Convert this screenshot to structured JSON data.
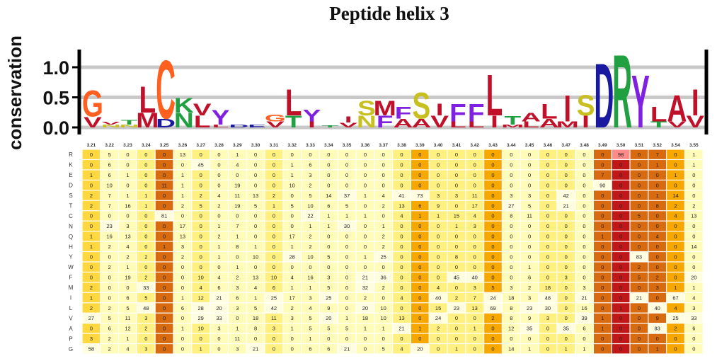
{
  "title": "Peptide helix 3",
  "ylabel": "conservation",
  "yticks": [
    "1.0",
    "0.5",
    "0.0"
  ],
  "positions": [
    "3.21",
    "3.22",
    "3.23",
    "3.24",
    "3.25",
    "3.26",
    "3.27",
    "3.28",
    "3.29",
    "3.30",
    "3.31",
    "3.32",
    "3.33",
    "3.34",
    "3.35",
    "3.36",
    "3.37",
    "3.38",
    "3.39",
    "3.40",
    "3.41",
    "3.42",
    "3.43",
    "3.44",
    "3.45",
    "3.46",
    "3.47",
    "3.48",
    "3.49",
    "3.50",
    "3.51",
    "3.52",
    "3.54",
    "3.55"
  ],
  "residues": [
    "R",
    "K",
    "E",
    "D",
    "S",
    "T",
    "C",
    "N",
    "Q",
    "H",
    "Y",
    "W",
    "F",
    "M",
    "I",
    "L",
    "V",
    "A",
    "P",
    "G"
  ],
  "colors": {
    "acidic": "#1a1aa0",
    "basic": "#2020d0",
    "hydrophobic": "#c0102a",
    "polar": "#c8c020",
    "aromatic": "#8020e0",
    "special": "#ff6020",
    "amide": "#20a040"
  },
  "logo": [
    {
      "top": "G",
      "top_h": 0.45,
      "top_c": "#ff6020",
      "bot": "V",
      "bot_h": 0.18,
      "bot_c": "#c0102a"
    },
    {
      "top": "V",
      "top_h": 0.05,
      "top_c": "#c0102a",
      "bot": "N",
      "bot_h": 0.05,
      "bot_c": "#c8c020"
    },
    {
      "top": "T",
      "top_h": 0.08,
      "top_c": "#20a040",
      "bot": "N",
      "bot_h": 0.05,
      "bot_c": "#c8c020"
    },
    {
      "top": "L",
      "top_h": 0.45,
      "top_c": "#c0102a",
      "bot": "M",
      "bot_h": 0.25,
      "bot_c": "#c0102a"
    },
    {
      "top": "C",
      "top_h": 1.0,
      "top_c": "#ff6020",
      "bot": "D",
      "bot_h": 0.15,
      "bot_c": "#1a1aa0"
    },
    {
      "top": "K",
      "top_h": 0.25,
      "top_c": "#20a040",
      "bot": "N",
      "bot_h": 0.25,
      "bot_c": "#20a040"
    },
    {
      "top": "V",
      "top_h": 0.2,
      "top_c": "#c0102a",
      "bot": "L",
      "bot_h": 0.2,
      "bot_c": "#c0102a"
    },
    {
      "top": "Y",
      "top_h": 0.25,
      "top_c": "#8020e0",
      "bot": "L",
      "bot_h": 0.05,
      "bot_c": "#c0102a"
    },
    {
      "top": "D",
      "top_h": 0.05,
      "top_c": "#1a1aa0",
      "bot": "",
      "bot_h": 0,
      "bot_c": "#1a1aa0"
    },
    {
      "top": "E",
      "top_h": 0.05,
      "top_c": "#1a1aa0",
      "bot": "",
      "bot_h": 0,
      "bot_c": "#1a1aa0"
    },
    {
      "top": "G",
      "top_h": 0.12,
      "top_c": "#ff6020",
      "bot": "V",
      "bot_h": 0.1,
      "bot_c": "#c0102a"
    },
    {
      "top": "L",
      "top_h": 0.45,
      "top_c": "#c0102a",
      "bot": "T",
      "bot_h": 0.2,
      "bot_c": "#20a040"
    },
    {
      "top": "Y",
      "top_h": 0.2,
      "top_c": "#8020e0",
      "bot": "I",
      "bot_h": 0.1,
      "bot_c": "#c0102a"
    },
    {
      "top": "T",
      "top_h": 0.04,
      "top_c": "#20a040",
      "bot": "",
      "bot_h": 0,
      "bot_c": "#20a040"
    },
    {
      "top": "I",
      "top_h": 0.1,
      "top_c": "#c0102a",
      "bot": "V",
      "bot_h": 0.08,
      "bot_c": "#c0102a"
    },
    {
      "top": "S",
      "top_h": 0.25,
      "top_c": "#c8c020",
      "bot": "N",
      "bot_h": 0.2,
      "bot_c": "#c8c020"
    },
    {
      "top": "M",
      "top_h": 0.25,
      "top_c": "#c0102a",
      "bot": "F",
      "bot_h": 0.2,
      "bot_c": "#8020e0"
    },
    {
      "top": "F",
      "top_h": 0.2,
      "top_c": "#8020e0",
      "bot": "A",
      "bot_h": 0.15,
      "bot_c": "#c0102a"
    },
    {
      "top": "S",
      "top_h": 0.45,
      "top_c": "#c8c020",
      "bot": "A",
      "bot_h": 0.15,
      "bot_c": "#c0102a"
    },
    {
      "top": "I",
      "top_h": 0.2,
      "top_c": "#c0102a",
      "bot": "V",
      "bot_h": 0.2,
      "bot_c": "#c0102a"
    },
    {
      "top": "F",
      "top_h": 0.3,
      "top_c": "#8020e0",
      "bot": "L",
      "bot_h": 0.1,
      "bot_c": "#c0102a"
    },
    {
      "top": "F",
      "top_h": 0.3,
      "top_c": "#8020e0",
      "bot": "L",
      "bot_h": 0.1,
      "bot_c": "#c0102a"
    },
    {
      "top": "L",
      "top_h": 0.7,
      "top_c": "#c0102a",
      "bot": "I",
      "bot_h": 0.2,
      "bot_c": "#c0102a"
    },
    {
      "top": "T",
      "top_h": 0.15,
      "top_c": "#20a040",
      "bot": "M",
      "bot_h": 0.05,
      "bot_c": "#c0102a"
    },
    {
      "top": "A",
      "top_h": 0.15,
      "top_c": "#c0102a",
      "bot": "L",
      "bot_h": 0.1,
      "bot_c": "#c0102a"
    },
    {
      "top": "L",
      "top_h": 0.25,
      "top_c": "#c0102a",
      "bot": "A",
      "bot_h": 0.15,
      "bot_c": "#c0102a"
    },
    {
      "top": "I",
      "top_h": 0.45,
      "top_c": "#c0102a",
      "bot": "M",
      "bot_h": 0.1,
      "bot_c": "#c0102a"
    },
    {
      "top": "S",
      "top_h": 0.35,
      "top_c": "#c8c020",
      "bot": "I",
      "bot_h": 0.2,
      "bot_c": "#c0102a"
    },
    {
      "top": "D",
      "top_h": 1.1,
      "top_c": "#1a1aa0",
      "bot": "",
      "bot_h": 0,
      "bot_c": "#1a1aa0"
    },
    {
      "top": "R",
      "top_h": 1.25,
      "top_c": "#20a040",
      "bot": "",
      "bot_h": 0,
      "bot_c": "#20a040"
    },
    {
      "top": "Y",
      "top_h": 0.9,
      "top_c": "#8020e0",
      "bot": "",
      "bot_h": 0,
      "bot_c": "#8020e0"
    },
    {
      "top": "L",
      "top_h": 0.25,
      "top_c": "#c0102a",
      "bot": "T",
      "bot_h": 0.1,
      "bot_c": "#20a040"
    },
    {
      "top": "A",
      "top_h": 0.45,
      "top_c": "#c0102a",
      "bot": "V",
      "bot_h": 0.1,
      "bot_c": "#c0102a"
    },
    {
      "top": "I",
      "top_h": 0.45,
      "top_c": "#c0102a",
      "bot": "V",
      "bot_h": 0.2,
      "bot_c": "#c0102a"
    }
  ],
  "matrix": [
    [
      "0",
      "5",
      "0",
      "0",
      "0",
      "13",
      "0",
      "0",
      "1",
      "0",
      "0",
      "0",
      "0",
      "0",
      "0",
      "0",
      "0",
      "0",
      "0",
      "0",
      "0",
      "0",
      "0",
      "0",
      "0",
      "0",
      "0",
      "0",
      "0",
      "98",
      "0",
      "7",
      "0",
      "1"
    ],
    [
      "0",
      "6",
      "0",
      "0",
      "0",
      "0",
      "45",
      "0",
      "4",
      "0",
      "0",
      "1",
      "6",
      "0",
      "0",
      "0",
      "0",
      "0",
      "0",
      "0",
      "0",
      "0",
      "0",
      "0",
      "0",
      "0",
      "0",
      "0",
      "0",
      "0",
      "0",
      "1",
      "0",
      "1"
    ],
    [
      "1",
      "6",
      "1",
      "0",
      "0",
      "1",
      "0",
      "0",
      "0",
      "0",
      "0",
      "1",
      "3",
      "0",
      "0",
      "0",
      "0",
      "0",
      "0",
      "0",
      "0",
      "0",
      "0",
      "0",
      "0",
      "0",
      "0",
      "0",
      "7",
      "0",
      "0",
      "0",
      "1",
      "0"
    ],
    [
      "0",
      "10",
      "0",
      "0",
      "11",
      "1",
      "0",
      "0",
      "19",
      "0",
      "0",
      "10",
      "2",
      "0",
      "0",
      "0",
      "0",
      "0",
      "0",
      "0",
      "0",
      "0",
      "0",
      "0",
      "0",
      "0",
      "0",
      "0",
      "90",
      "0",
      "0",
      "0",
      "0",
      "0"
    ],
    [
      "2",
      "7",
      "1",
      "1",
      "0",
      "1",
      "2",
      "4",
      "11",
      "13",
      "2",
      "0",
      "5",
      "14",
      "37",
      "1",
      "4",
      "41",
      "73",
      "3",
      "3",
      "11",
      "0",
      "3",
      "3",
      "0",
      "42",
      "0",
      "0",
      "0",
      "0",
      "1",
      "14",
      "0"
    ],
    [
      "2",
      "7",
      "16",
      "1",
      "0",
      "2",
      "5",
      "2",
      "19",
      "5",
      "1",
      "5",
      "10",
      "6",
      "5",
      "0",
      "2",
      "13",
      "6",
      "9",
      "0",
      "17",
      "0",
      "27",
      "5",
      "0",
      "21",
      "0",
      "0",
      "0",
      "0",
      "8",
      "2",
      "2"
    ],
    [
      "0",
      "0",
      "0",
      "0",
      "81",
      "0",
      "0",
      "0",
      "0",
      "0",
      "0",
      "0",
      "22",
      "1",
      "1",
      "1",
      "0",
      "4",
      "1",
      "1",
      "15",
      "4",
      "0",
      "8",
      "11",
      "0",
      "0",
      "0",
      "0",
      "0",
      "5",
      "0",
      "4",
      "13"
    ],
    [
      "0",
      "23",
      "3",
      "0",
      "0",
      "17",
      "0",
      "1",
      "7",
      "0",
      "0",
      "0",
      "1",
      "1",
      "30",
      "0",
      "1",
      "0",
      "0",
      "0",
      "1",
      "3",
      "0",
      "0",
      "0",
      "0",
      "0",
      "0",
      "0",
      "0",
      "0",
      "0",
      "0",
      "0"
    ],
    [
      "1",
      "16",
      "13",
      "0",
      "0",
      "13",
      "0",
      "2",
      "1",
      "0",
      "0",
      "17",
      "2",
      "0",
      "0",
      "0",
      "2",
      "0",
      "0",
      "0",
      "0",
      "0",
      "0",
      "0",
      "0",
      "0",
      "0",
      "0",
      "1",
      "0",
      "0",
      "4",
      "0",
      "0"
    ],
    [
      "1",
      "2",
      "4",
      "0",
      "1",
      "3",
      "0",
      "1",
      "8",
      "1",
      "0",
      "1",
      "2",
      "0",
      "0",
      "0",
      "2",
      "0",
      "0",
      "0",
      "0",
      "0",
      "0",
      "0",
      "0",
      "0",
      "0",
      "0",
      "0",
      "0",
      "0",
      "0",
      "0",
      "14"
    ],
    [
      "0",
      "0",
      "2",
      "2",
      "0",
      "2",
      "0",
      "1",
      "0",
      "10",
      "0",
      "28",
      "10",
      "5",
      "0",
      "1",
      "25",
      "0",
      "0",
      "0",
      "8",
      "0",
      "0",
      "0",
      "0",
      "0",
      "0",
      "0",
      "0",
      "0",
      "83",
      "0",
      "0",
      "0"
    ],
    [
      "0",
      "2",
      "1",
      "0",
      "0",
      "0",
      "0",
      "0",
      "1",
      "0",
      "0",
      "0",
      "0",
      "0",
      "0",
      "0",
      "0",
      "0",
      "0",
      "0",
      "0",
      "0",
      "0",
      "0",
      "1",
      "0",
      "0",
      "0",
      "0",
      "0",
      "2",
      "0",
      "0",
      "0"
    ],
    [
      "0",
      "0",
      "19",
      "2",
      "0",
      "0",
      "10",
      "4",
      "2",
      "13",
      "10",
      "4",
      "16",
      "3",
      "0",
      "21",
      "36",
      "0",
      "0",
      "0",
      "45",
      "40",
      "0",
      "0",
      "6",
      "0",
      "3",
      "0",
      "0",
      "0",
      "5",
      "2",
      "0",
      "20"
    ],
    [
      "2",
      "0",
      "0",
      "33",
      "0",
      "0",
      "4",
      "6",
      "3",
      "4",
      "6",
      "1",
      "1",
      "5",
      "0",
      "32",
      "2",
      "0",
      "0",
      "4",
      "0",
      "3",
      "5",
      "3",
      "2",
      "18",
      "0",
      "3",
      "0",
      "0",
      "0",
      "3",
      "1",
      "1"
    ],
    [
      "1",
      "0",
      "6",
      "5",
      "0",
      "1",
      "12",
      "21",
      "6",
      "1",
      "25",
      "17",
      "3",
      "25",
      "0",
      "2",
      "0",
      "4",
      "0",
      "40",
      "2",
      "7",
      "24",
      "18",
      "3",
      "48",
      "0",
      "21",
      "0",
      "0",
      "21",
      "0",
      "67",
      "4"
    ],
    [
      "2",
      "2",
      "5",
      "48",
      "0",
      "6",
      "28",
      "20",
      "3",
      "5",
      "42",
      "2",
      "4",
      "9",
      "0",
      "20",
      "10",
      "0",
      "0",
      "15",
      "23",
      "13",
      "69",
      "8",
      "23",
      "30",
      "0",
      "16",
      "0",
      "1",
      "0",
      "40",
      "4",
      "3"
    ],
    [
      "27",
      "5",
      "11",
      "3",
      "0",
      "0",
      "29",
      "33",
      "0",
      "18",
      "11",
      "3",
      "5",
      "20",
      "1",
      "18",
      "10",
      "13",
      "0",
      "24",
      "0",
      "0",
      "2",
      "8",
      "9",
      "3",
      "0",
      "39",
      "1",
      "0",
      "0",
      "9",
      "25",
      "33"
    ],
    [
      "0",
      "6",
      "12",
      "2",
      "0",
      "1",
      "10",
      "3",
      "1",
      "8",
      "3",
      "1",
      "5",
      "5",
      "5",
      "1",
      "1",
      "21",
      "1",
      "2",
      "0",
      "1",
      "0",
      "12",
      "35",
      "0",
      "35",
      "6",
      "1",
      "0",
      "0",
      "83",
      "2",
      "6"
    ],
    [
      "3",
      "2",
      "1",
      "0",
      "0",
      "0",
      "0",
      "0",
      "11",
      "0",
      "0",
      "0",
      "1",
      "0",
      "0",
      "0",
      "0",
      "0",
      "0",
      "0",
      "0",
      "0",
      "0",
      "0",
      "0",
      "0",
      "0",
      "0",
      "0",
      "0",
      "0",
      "0",
      "0",
      "0"
    ],
    [
      "58",
      "2",
      "4",
      "3",
      "0",
      "0",
      "1",
      "0",
      "3",
      "21",
      "0",
      "0",
      "6",
      "6",
      "21",
      "0",
      "5",
      "4",
      "20",
      "0",
      "1",
      "0",
      "0",
      "14",
      "1",
      "0",
      "1",
      "1",
      "0",
      "0",
      "0",
      "1",
      "0",
      "0"
    ]
  ]
}
